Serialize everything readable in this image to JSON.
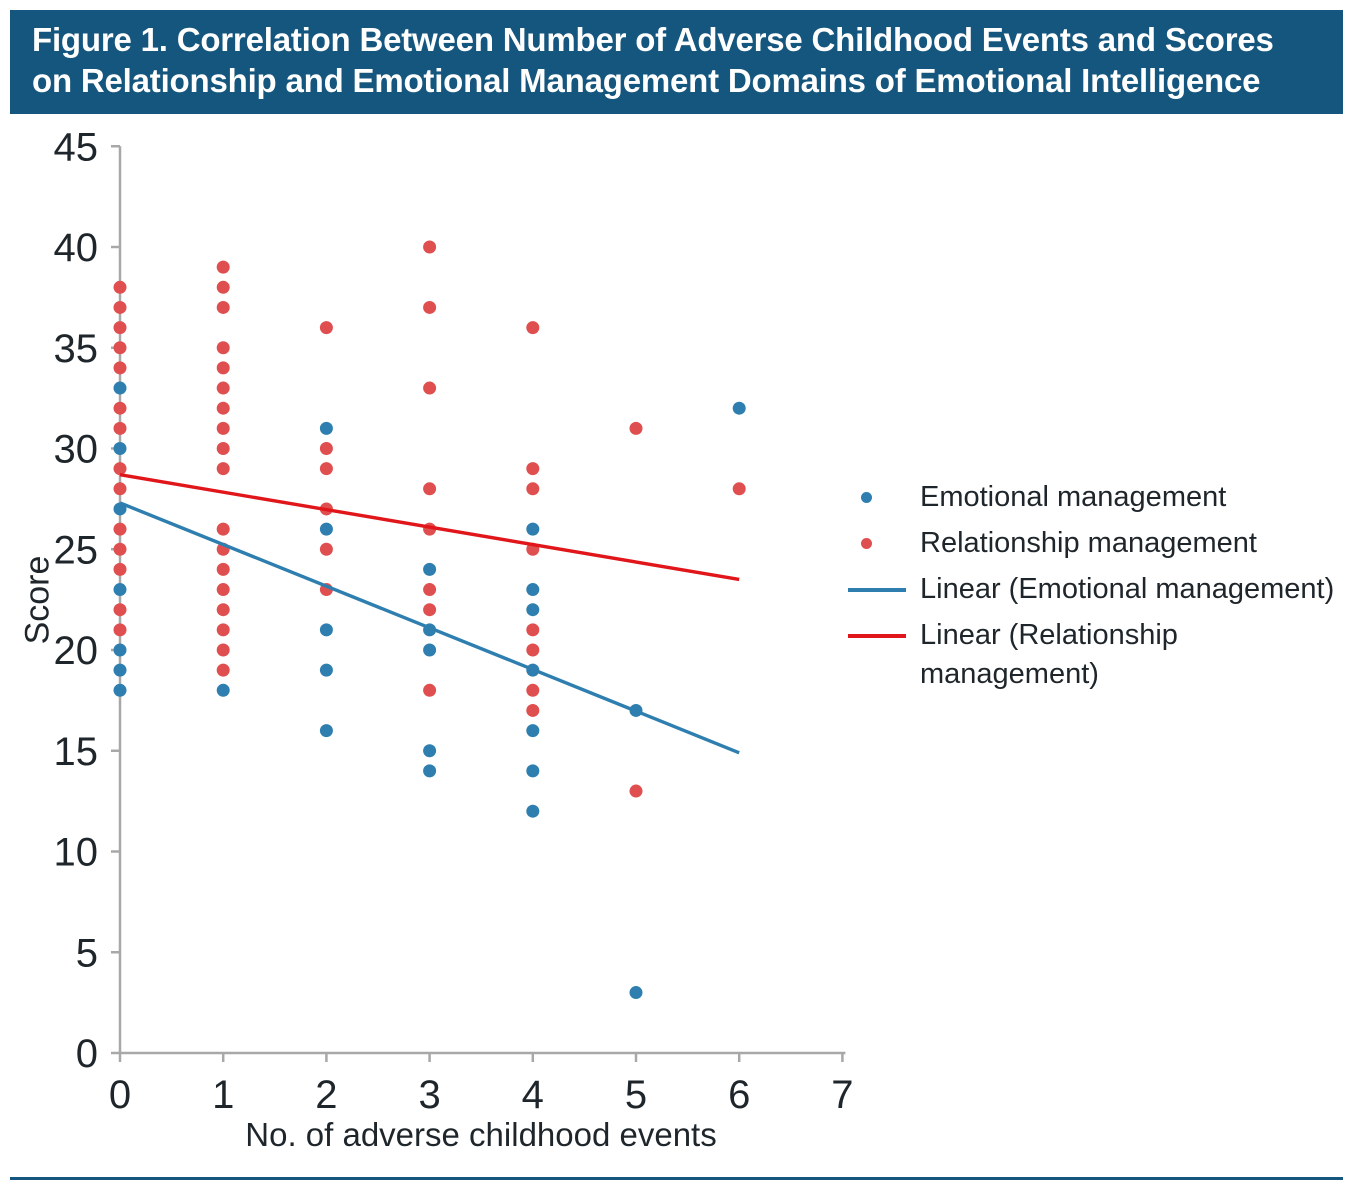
{
  "title": {
    "line1": "Figure 1. Correlation Between Number of Adverse Childhood Events and Scores",
    "line2": "on Relationship and Emotional Management Domains of Emotional Intelligence"
  },
  "colors": {
    "header_bg": "#15567E",
    "title_text": "#FFFFFF",
    "emotional": "#2E7FAF",
    "relationship": "#E04F4F",
    "relationship_line": "#E1161B",
    "axis": "#A8A8A8",
    "text": "#1F262B",
    "bottom_rule": "#15567E"
  },
  "chart_data": {
    "type": "scatter",
    "xlabel": "No. of adverse childhood events",
    "ylabel": "Score",
    "xlim": [
      0,
      7
    ],
    "ylim": [
      0,
      45
    ],
    "x_ticks": [
      0,
      1,
      2,
      3,
      4,
      5,
      6,
      7
    ],
    "y_ticks": [
      0,
      5,
      10,
      15,
      20,
      25,
      30,
      35,
      40,
      45
    ],
    "grid": false,
    "legend_position": "right",
    "series": [
      {
        "name": "Emotional management",
        "color_key": "emotional",
        "points": [
          [
            0,
            33
          ],
          [
            0,
            30
          ],
          [
            0,
            27
          ],
          [
            0,
            23
          ],
          [
            0,
            20
          ],
          [
            0,
            19
          ],
          [
            0,
            18
          ],
          [
            1,
            18
          ],
          [
            2,
            31
          ],
          [
            2,
            26
          ],
          [
            2,
            21
          ],
          [
            2,
            19
          ],
          [
            2,
            16
          ],
          [
            3,
            24
          ],
          [
            3,
            21
          ],
          [
            3,
            20
          ],
          [
            3,
            15
          ],
          [
            3,
            14
          ],
          [
            4,
            26
          ],
          [
            4,
            23
          ],
          [
            4,
            22
          ],
          [
            4,
            19
          ],
          [
            4,
            16
          ],
          [
            4,
            14
          ],
          [
            4,
            12
          ],
          [
            5,
            17
          ],
          [
            5,
            3
          ],
          [
            6,
            32
          ]
        ]
      },
      {
        "name": "Relationship management",
        "color_key": "relationship",
        "points": [
          [
            0,
            38
          ],
          [
            0,
            37
          ],
          [
            0,
            36
          ],
          [
            0,
            35
          ],
          [
            0,
            34
          ],
          [
            0,
            32
          ],
          [
            0,
            31
          ],
          [
            0,
            29
          ],
          [
            0,
            28
          ],
          [
            0,
            26
          ],
          [
            0,
            25
          ],
          [
            0,
            24
          ],
          [
            0,
            22
          ],
          [
            0,
            21
          ],
          [
            1,
            39
          ],
          [
            1,
            38
          ],
          [
            1,
            37
          ],
          [
            1,
            35
          ],
          [
            1,
            34
          ],
          [
            1,
            33
          ],
          [
            1,
            32
          ],
          [
            1,
            31
          ],
          [
            1,
            30
          ],
          [
            1,
            29
          ],
          [
            1,
            26
          ],
          [
            1,
            25
          ],
          [
            1,
            24
          ],
          [
            1,
            23
          ],
          [
            1,
            22
          ],
          [
            1,
            21
          ],
          [
            1,
            20
          ],
          [
            1,
            19
          ],
          [
            2,
            36
          ],
          [
            2,
            30
          ],
          [
            2,
            29
          ],
          [
            2,
            27
          ],
          [
            2,
            25
          ],
          [
            2,
            23
          ],
          [
            3,
            40
          ],
          [
            3,
            37
          ],
          [
            3,
            33
          ],
          [
            3,
            28
          ],
          [
            3,
            26
          ],
          [
            3,
            23
          ],
          [
            3,
            22
          ],
          [
            3,
            18
          ],
          [
            4,
            36
          ],
          [
            4,
            29
          ],
          [
            4,
            28
          ],
          [
            4,
            25
          ],
          [
            4,
            21
          ],
          [
            4,
            20
          ],
          [
            4,
            18
          ],
          [
            4,
            17
          ],
          [
            5,
            31
          ],
          [
            5,
            13
          ],
          [
            6,
            28
          ]
        ]
      }
    ],
    "trend_lines": [
      {
        "name": "Linear (Emotional management)",
        "color_key": "emotional",
        "from": [
          0,
          27.3
        ],
        "to": [
          6,
          14.9
        ]
      },
      {
        "name": "Linear (Relationship management)",
        "color_key": "relationship_line",
        "from": [
          0,
          28.7
        ],
        "to": [
          6,
          23.5
        ]
      }
    ],
    "legend": {
      "items": [
        {
          "label": "Emotional management",
          "marker": "dot",
          "color_key": "emotional"
        },
        {
          "label": "Relationship management",
          "marker": "dot",
          "color_key": "relationship"
        },
        {
          "label": "Linear (Emotional management)",
          "marker": "line",
          "color_key": "emotional"
        },
        {
          "label": "Linear (Relationship management)",
          "marker": "line",
          "color_key": "relationship_line"
        }
      ]
    }
  }
}
